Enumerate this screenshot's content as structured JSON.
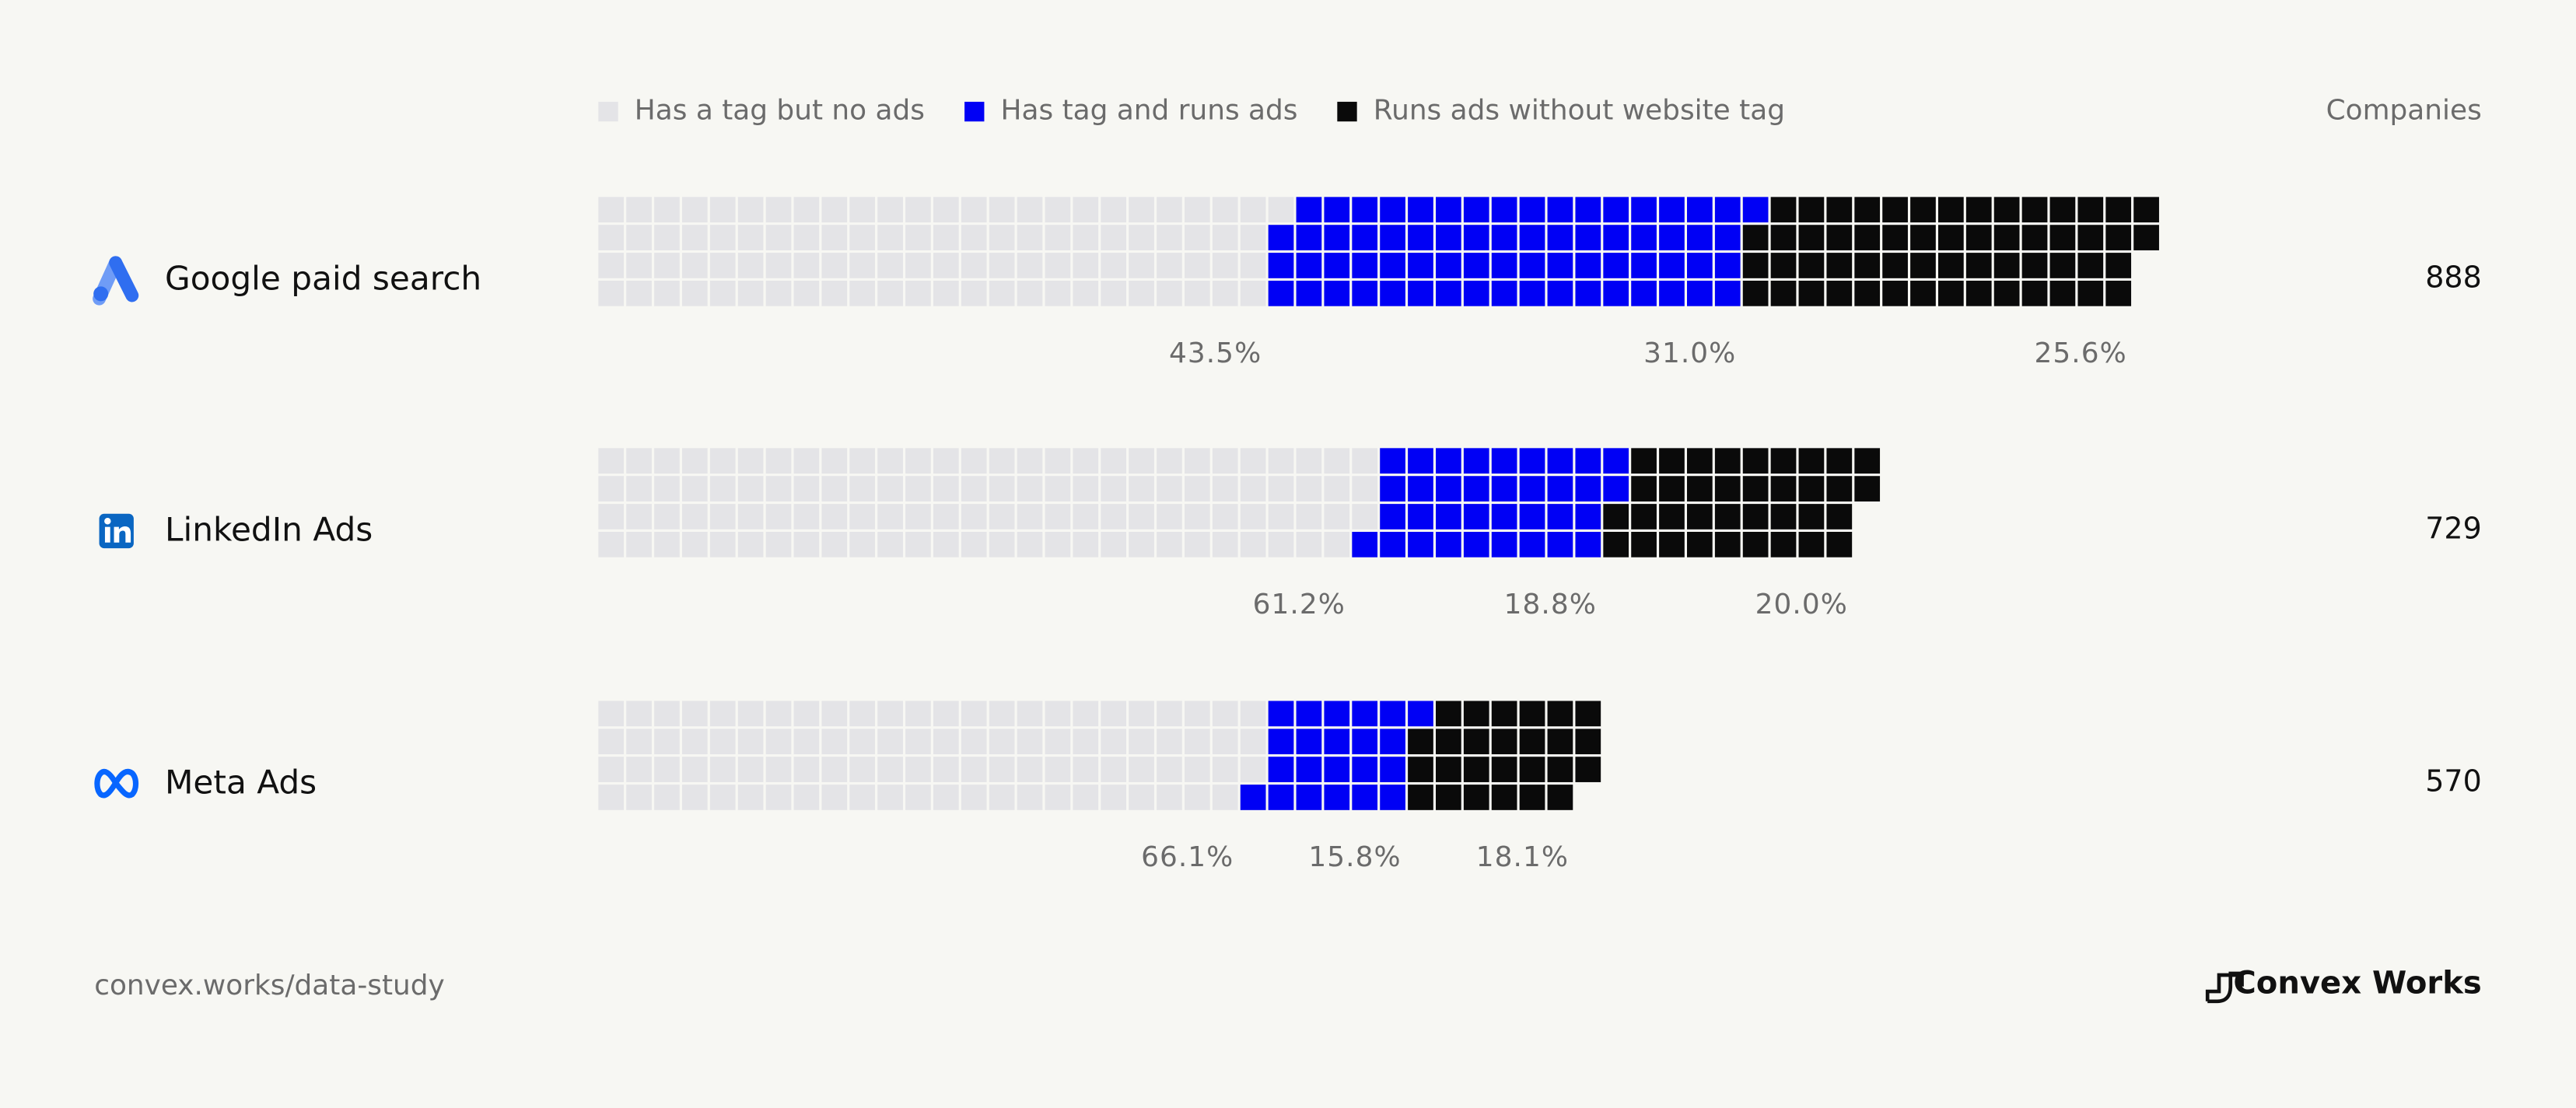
{
  "chart_data": {
    "type": "waffle",
    "categories": [
      "Google paid search",
      "LinkedIn Ads",
      "Meta Ads"
    ],
    "companies_label": "Companies",
    "companies": [
      888,
      729,
      570
    ],
    "series": [
      {
        "name": "Has a tag but no ads",
        "color": "#e4e4e7",
        "values": [
          43.5,
          61.2,
          66.1
        ],
        "value_labels": [
          "43.5%",
          "61.2%",
          "66.1%"
        ]
      },
      {
        "name": "Has tag and runs ads",
        "color": "#0000f5",
        "values": [
          31.0,
          18.8,
          15.8
        ],
        "value_labels": [
          "31.0%",
          "18.8%",
          "15.8%"
        ]
      },
      {
        "name": "Runs ads without website tag",
        "color": "#0a0a0a",
        "values": [
          25.6,
          20.0,
          18.1
        ],
        "value_labels": [
          "25.6%",
          "20.0%",
          "18.1%"
        ]
      }
    ]
  },
  "footer": {
    "source": "convex.works/data-study",
    "brand": "Convex Works"
  }
}
